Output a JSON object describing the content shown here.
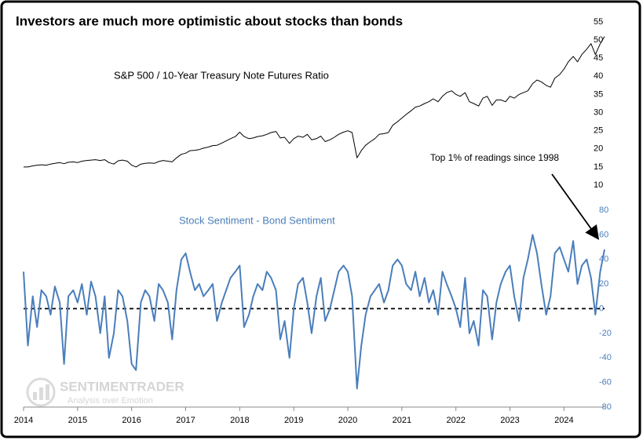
{
  "chart_data": [
    {
      "type": "line",
      "title": "Investors are much more optimistic about stocks than bonds",
      "annotation": "S&P 500 / 10-Year Treasury Note Futures Ratio",
      "color": "#000000",
      "xlim": [
        2014,
        2024.75
      ],
      "ylim": [
        10,
        55
      ],
      "yticks": [
        10,
        15,
        20,
        25,
        30,
        35,
        40,
        45,
        50,
        55
      ],
      "x": [
        2014,
        2014.08,
        2014.17,
        2014.25,
        2014.33,
        2014.42,
        2014.5,
        2014.58,
        2014.67,
        2014.75,
        2014.83,
        2014.92,
        2015,
        2015.08,
        2015.17,
        2015.25,
        2015.33,
        2015.42,
        2015.5,
        2015.58,
        2015.67,
        2015.75,
        2015.83,
        2015.92,
        2016,
        2016.08,
        2016.17,
        2016.25,
        2016.33,
        2016.42,
        2016.5,
        2016.58,
        2016.67,
        2016.75,
        2016.83,
        2016.92,
        2017,
        2017.08,
        2017.17,
        2017.25,
        2017.33,
        2017.42,
        2017.5,
        2017.58,
        2017.67,
        2017.75,
        2017.83,
        2017.92,
        2018,
        2018.08,
        2018.17,
        2018.25,
        2018.33,
        2018.42,
        2018.5,
        2018.58,
        2018.67,
        2018.75,
        2018.83,
        2018.92,
        2019,
        2019.08,
        2019.17,
        2019.25,
        2019.33,
        2019.42,
        2019.5,
        2019.58,
        2019.67,
        2019.75,
        2019.83,
        2019.92,
        2020,
        2020.08,
        2020.17,
        2020.25,
        2020.33,
        2020.42,
        2020.5,
        2020.58,
        2020.67,
        2020.75,
        2020.83,
        2020.92,
        2021,
        2021.08,
        2021.17,
        2021.25,
        2021.33,
        2021.42,
        2021.5,
        2021.58,
        2021.67,
        2021.75,
        2021.83,
        2021.92,
        2022,
        2022.08,
        2022.17,
        2022.25,
        2022.33,
        2022.42,
        2022.5,
        2022.58,
        2022.67,
        2022.75,
        2022.83,
        2022.92,
        2023,
        2023.08,
        2023.17,
        2023.25,
        2023.33,
        2023.42,
        2023.5,
        2023.58,
        2023.67,
        2023.75,
        2023.83,
        2023.92,
        2024,
        2024.08,
        2024.17,
        2024.25,
        2024.33,
        2024.42,
        2024.5,
        2024.58,
        2024.67,
        2024.75
      ],
      "values": [
        15,
        15,
        15.3,
        15.5,
        15.6,
        15.5,
        15.8,
        16,
        16.2,
        15.9,
        16.3,
        16.4,
        16.2,
        16.6,
        16.8,
        16.9,
        17,
        16.8,
        17,
        16.2,
        15.8,
        16.7,
        16.9,
        16.6,
        15.5,
        15,
        15.8,
        16,
        16.1,
        16,
        16.5,
        16.8,
        16.6,
        16.4,
        17.5,
        18.5,
        18.8,
        19.5,
        19.6,
        19.8,
        20.2,
        20.5,
        20.9,
        21,
        21.6,
        22.2,
        22.8,
        23.4,
        24.6,
        23.4,
        22.8,
        23,
        23.4,
        23.6,
        24,
        24.5,
        24.8,
        23,
        23.2,
        21.5,
        22.8,
        23.5,
        23.2,
        24,
        22.5,
        22.8,
        23.5,
        22,
        22.5,
        23.2,
        24,
        24.6,
        25,
        24.5,
        17.5,
        19.5,
        21,
        22,
        22.8,
        24,
        24.2,
        24.5,
        26.5,
        27.5,
        28.5,
        29.5,
        30.5,
        31.5,
        31.8,
        32.5,
        33,
        33.8,
        33,
        34.5,
        35.5,
        36,
        35,
        34.5,
        35.5,
        33,
        32.5,
        31.8,
        34,
        34.5,
        32,
        33.5,
        33.5,
        33,
        34.5,
        34,
        35,
        35.5,
        36,
        38,
        39,
        38.5,
        37.5,
        37,
        39.5,
        40.5,
        42,
        44,
        45.5,
        44,
        46,
        47.5,
        49,
        46,
        49,
        51
      ]
    },
    {
      "type": "line",
      "label": "Stock Sentiment - Bond Sentiment",
      "annotation": "Top 1% of readings since 1998",
      "color": "#4a7ebb",
      "hline": 0,
      "xlim": [
        2014,
        2024.75
      ],
      "ylim": [
        -80,
        80
      ],
      "yticks": [
        -80,
        -60,
        -40,
        -20,
        0,
        20,
        40,
        60,
        80
      ],
      "xticks": [
        2014,
        2015,
        2016,
        2017,
        2018,
        2019,
        2020,
        2021,
        2022,
        2023,
        2024
      ],
      "x": [
        2014,
        2014.08,
        2014.17,
        2014.25,
        2014.33,
        2014.42,
        2014.5,
        2014.58,
        2014.67,
        2014.75,
        2014.83,
        2014.92,
        2015,
        2015.08,
        2015.17,
        2015.25,
        2015.33,
        2015.42,
        2015.5,
        2015.58,
        2015.67,
        2015.75,
        2015.83,
        2015.92,
        2016,
        2016.08,
        2016.17,
        2016.25,
        2016.33,
        2016.42,
        2016.5,
        2016.58,
        2016.67,
        2016.75,
        2016.83,
        2016.92,
        2017,
        2017.08,
        2017.17,
        2017.25,
        2017.33,
        2017.42,
        2017.5,
        2017.58,
        2017.67,
        2017.75,
        2017.83,
        2017.92,
        2018,
        2018.08,
        2018.17,
        2018.25,
        2018.33,
        2018.42,
        2018.5,
        2018.58,
        2018.67,
        2018.75,
        2018.83,
        2018.92,
        2019,
        2019.08,
        2019.17,
        2019.25,
        2019.33,
        2019.42,
        2019.5,
        2019.58,
        2019.67,
        2019.75,
        2019.83,
        2019.92,
        2020,
        2020.08,
        2020.17,
        2020.25,
        2020.33,
        2020.42,
        2020.5,
        2020.58,
        2020.67,
        2020.75,
        2020.83,
        2020.92,
        2021,
        2021.08,
        2021.17,
        2021.25,
        2021.33,
        2021.42,
        2021.5,
        2021.58,
        2021.67,
        2021.75,
        2021.83,
        2021.92,
        2022,
        2022.08,
        2022.17,
        2022.25,
        2022.33,
        2022.42,
        2022.5,
        2022.58,
        2022.67,
        2022.75,
        2022.83,
        2022.92,
        2023,
        2023.08,
        2023.17,
        2023.25,
        2023.33,
        2023.42,
        2023.5,
        2023.58,
        2023.67,
        2023.75,
        2023.83,
        2023.92,
        2024,
        2024.08,
        2024.17,
        2024.25,
        2024.33,
        2024.42,
        2024.5,
        2024.58,
        2024.67,
        2024.75
      ],
      "values": [
        30,
        -30,
        10,
        -15,
        15,
        10,
        -5,
        18,
        5,
        -45,
        10,
        15,
        5,
        20,
        -5,
        22,
        10,
        -20,
        10,
        -40,
        -20,
        15,
        10,
        -10,
        -45,
        -50,
        5,
        15,
        10,
        -10,
        20,
        15,
        5,
        -25,
        15,
        40,
        45,
        30,
        15,
        20,
        10,
        15,
        20,
        -10,
        5,
        15,
        25,
        30,
        35,
        -15,
        -5,
        10,
        20,
        15,
        30,
        25,
        15,
        -25,
        -10,
        -40,
        0,
        20,
        25,
        5,
        -20,
        10,
        25,
        -10,
        0,
        15,
        30,
        35,
        30,
        10,
        -65,
        -30,
        -5,
        10,
        15,
        20,
        5,
        15,
        35,
        40,
        35,
        20,
        15,
        30,
        10,
        25,
        5,
        15,
        -5,
        30,
        20,
        10,
        0,
        -15,
        25,
        -20,
        -10,
        -30,
        15,
        10,
        -25,
        5,
        20,
        30,
        35,
        10,
        -10,
        25,
        40,
        60,
        45,
        20,
        -5,
        10,
        45,
        50,
        40,
        30,
        55,
        20,
        35,
        40,
        25,
        -5,
        30,
        48
      ]
    }
  ],
  "watermark": {
    "name": "SENTIMENTRADER",
    "tagline": "Analysis over Emotion"
  }
}
